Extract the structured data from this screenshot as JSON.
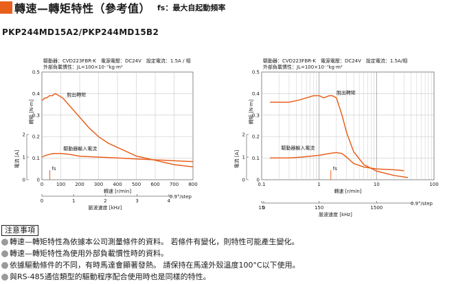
{
  "header": {
    "title": "轉速—轉矩特性（參考值）",
    "subtitle": "fs：最大自起動頻率"
  },
  "model": "PKP244MD15A2/PKP244MD15B2",
  "colors": {
    "accent": "#e8601c",
    "curve": "#e8601c",
    "grid": "#c8c8c8",
    "axis": "#6a6a6a"
  },
  "chart_data": [
    {
      "type": "line",
      "scale": "linear",
      "info_line1": "驅動器：CVD223FBR-K　電源電壓：DC24V　設定電流：1.5A / 相",
      "info_line2": "外部負載慣性：JL=100×10⁻⁷kg·m²",
      "y_label": "轉矩 [N·m]",
      "y_ticks": [
        "0",
        "0.1",
        "0.2",
        "0.3",
        "0.4",
        "0.5"
      ],
      "ylim": [
        0,
        0.5
      ],
      "y2_label": "電流 [A]",
      "y2_ticks": [
        "0",
        "1",
        "2"
      ],
      "y2lim": [
        0,
        2
      ],
      "x_label": "轉速 [r/min]",
      "x_ticks": [
        "0",
        "100",
        "200",
        "300",
        "400",
        "500",
        "600",
        "700",
        "800"
      ],
      "xlim": [
        0,
        800
      ],
      "x2_label": "脈波速度 [kHz]",
      "x2_ticks": [
        "0",
        "1",
        "2",
        "3",
        "4"
      ],
      "x2_note": "0.9°/step",
      "annotations": {
        "pullout": "脫出轉矩",
        "current": "驅動器輸入電流",
        "fs": "fs"
      },
      "series": [
        {
          "name": "脫出轉矩",
          "x": [
            0,
            5,
            15,
            25,
            40,
            55,
            70,
            90,
            110,
            150,
            200,
            250,
            300,
            350,
            400,
            450,
            500,
            550,
            600,
            650,
            700,
            750,
            800
          ],
          "y": [
            0.37,
            0.37,
            0.38,
            0.38,
            0.39,
            0.39,
            0.4,
            0.39,
            0.38,
            0.34,
            0.29,
            0.24,
            0.2,
            0.17,
            0.15,
            0.13,
            0.11,
            0.1,
            0.09,
            0.08,
            0.07,
            0.065,
            0.06
          ]
        },
        {
          "name": "驅動器輸入電流",
          "x": [
            0,
            20,
            60,
            100,
            150,
            200,
            300,
            400,
            500,
            600,
            700,
            800
          ],
          "y": [
            0.25,
            0.27,
            0.29,
            0.29,
            0.28,
            0.26,
            0.25,
            0.24,
            0.23,
            0.22,
            0.21,
            0.2
          ]
        }
      ],
      "fs_x": 42
    },
    {
      "type": "line",
      "scale": "log",
      "info_line1": "驅動器：CVD223FBR-K　電源電壓：DC24V　設定電流：1.5A/相",
      "info_line2": "外部負載慣性：JL=100×10⁻⁷kg·m²",
      "y_label": "轉矩 [N·m]",
      "y_ticks": [
        "0",
        "0.1",
        "0.2",
        "0.3",
        "0.4",
        "0.5"
      ],
      "ylim": [
        0,
        0.5
      ],
      "y2_label": "電流 [A]",
      "y2_ticks": [
        "0",
        "1",
        "2"
      ],
      "y2lim": [
        0,
        2
      ],
      "x_label": "轉速 [r/min]",
      "x_ticks": [
        "0.1",
        "1",
        "10",
        "100"
      ],
      "xlim": [
        0.1,
        100
      ],
      "x2_label": "脈波速度 [kHz]",
      "x2_ticks": [
        "0",
        "15",
        "150",
        "1500"
      ],
      "x2_note": "0.9°/step",
      "annotations": {
        "pullout": "脫出轉矩",
        "current": "驅動器輸入電流",
        "fs": "fs"
      },
      "series": [
        {
          "name": "脫出轉矩",
          "x": [
            0.14,
            0.2,
            0.3,
            0.45,
            0.6,
            0.8,
            1.0,
            1.2,
            1.5,
            1.7,
            2.0,
            2.5,
            3.0,
            4.0,
            6.0,
            10,
            20,
            35
          ],
          "y": [
            0.36,
            0.36,
            0.36,
            0.37,
            0.38,
            0.39,
            0.39,
            0.38,
            0.39,
            0.39,
            0.38,
            0.3,
            0.22,
            0.13,
            0.07,
            0.04,
            0.02,
            0.01
          ]
        },
        {
          "name": "驅動器輸入電流",
          "x": [
            0.14,
            0.2,
            0.3,
            0.5,
            0.7,
            1.0,
            1.5,
            2.0,
            2.5,
            3.0,
            4.0,
            6.0,
            10,
            20,
            30
          ],
          "y": [
            0.24,
            0.24,
            0.24,
            0.25,
            0.26,
            0.27,
            0.29,
            0.3,
            0.29,
            0.25,
            0.18,
            0.14,
            0.12,
            0.11,
            0.1
          ]
        }
      ],
      "fs_x": 1.6
    }
  ],
  "notes": {
    "title": "注意事項",
    "items": [
      "轉速—轉矩特性為依據本公司測量條件的資料。 若條件有變化，則特性可能產生變化。",
      "轉速—轉矩特性為使用外部負載慣性時的資料。",
      "依據驅動條件的不同，有時馬達會顯著發熱。 請保持在馬達外殼溫度100°C以下使用。",
      "與RS-485通信類型的驅動程序配合使用時也是同樣的特性。"
    ]
  }
}
